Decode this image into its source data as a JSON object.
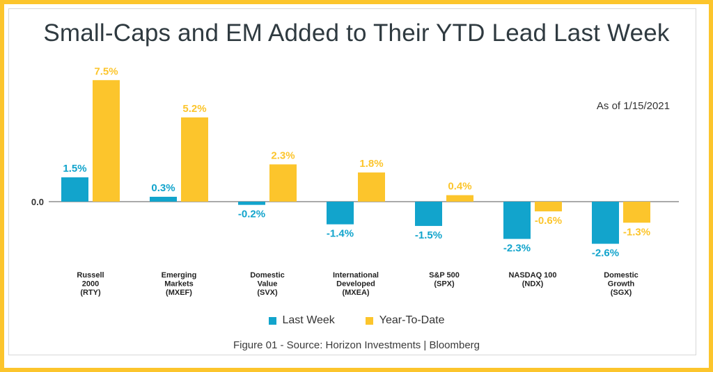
{
  "title": "Small-Caps and EM Added to Their YTD Lead Last Week",
  "as_of": "As of 1/15/2021",
  "source": "Figure 01 - Source: Horizon Investments | Bloomberg",
  "colors": {
    "last_week": "#12a4cc",
    "ytd": "#fcc52c",
    "frame": "#fcc52c"
  },
  "chart_data": {
    "type": "bar",
    "categories": [
      [
        "Russell",
        "2000",
        "(RTY)"
      ],
      [
        "Emerging",
        "Markets",
        "(MXEF)"
      ],
      [
        "Domestic",
        "Value",
        "(SVX)"
      ],
      [
        "International",
        "Developed",
        "(MXEA)"
      ],
      [
        "S&P 500",
        "(SPX)"
      ],
      [
        "NASDAQ 100",
        "(NDX)"
      ],
      [
        "Domestic",
        "Growth",
        "(SGX)"
      ]
    ],
    "series": [
      {
        "name": "Last Week",
        "values": [
          1.5,
          0.3,
          -0.2,
          -1.4,
          -1.5,
          -2.3,
          -2.6
        ],
        "labels": [
          "1.5%",
          "0.3%",
          "-0.2%",
          "-1.4%",
          "-1.5%",
          "-2.3%",
          "-2.6%"
        ]
      },
      {
        "name": "Year-To-Date",
        "values": [
          7.5,
          5.2,
          2.3,
          1.8,
          0.4,
          -0.6,
          -1.3
        ],
        "labels": [
          "7.5%",
          "5.2%",
          "2.3%",
          "1.8%",
          "0.4%",
          "-0.6%",
          "-1.3%"
        ]
      }
    ],
    "zero_label": "0.0",
    "ylim": [
      -3,
      8
    ],
    "grid": false,
    "legend": "bottom"
  }
}
